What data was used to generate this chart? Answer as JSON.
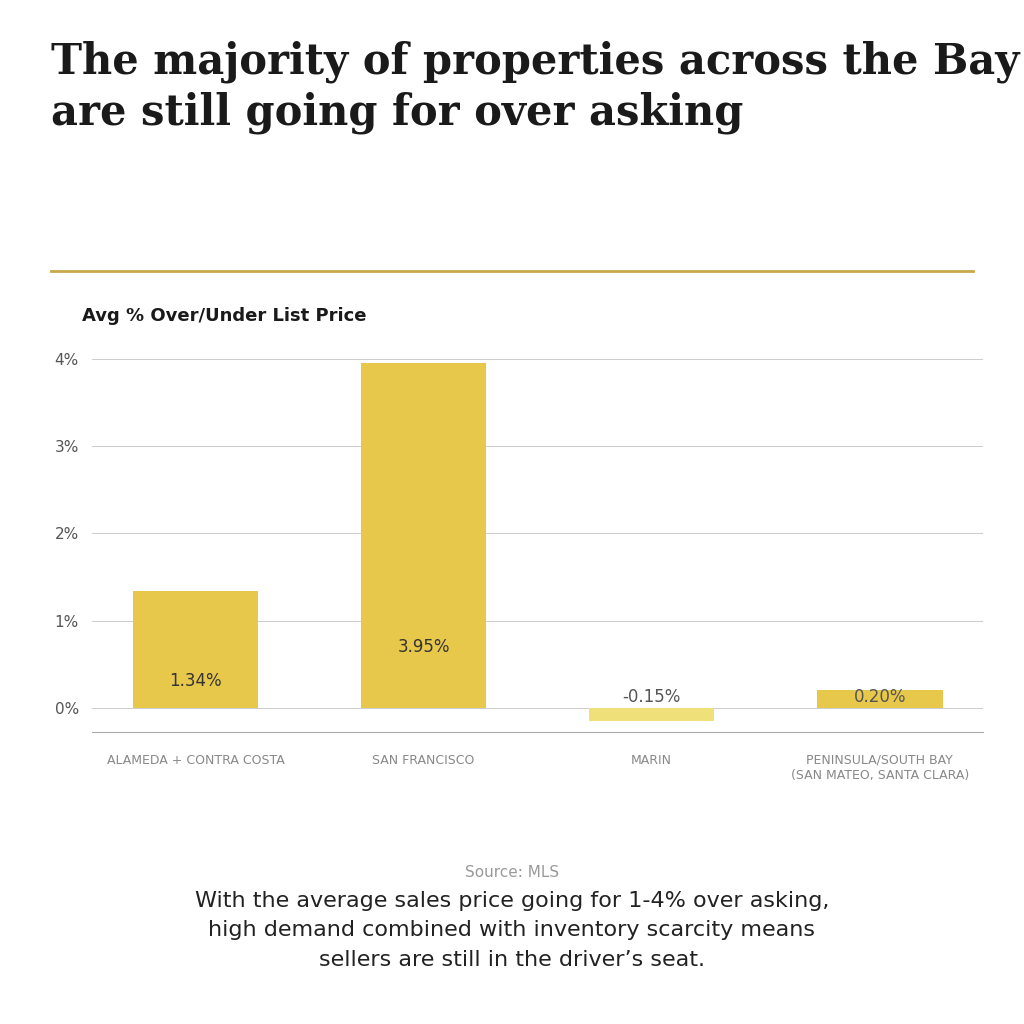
{
  "title": "The majority of properties across the Bay Area\nare still going for over asking",
  "ylabel": "Avg % Over/Under List Price",
  "categories": [
    "ALAMEDA + CONTRA COSTA",
    "SAN FRANCISCO",
    "MARIN",
    "PENINSULA/SOUTH BAY\n(SAN MATEO, SANTA CLARA)"
  ],
  "values": [
    1.34,
    3.95,
    -0.15,
    0.2
  ],
  "bar_colors": [
    "#E8C84A",
    "#E8C84A",
    "#F0E07A",
    "#E8C84A"
  ],
  "value_labels": [
    "1.34%",
    "3.95%",
    "-0.15%",
    "0.20%"
  ],
  "source": "Source: MLS",
  "footnote": "With the average sales price going for 1-4% over asking,\nhigh demand combined with inventory scarcity means\nsellers are still in the driver’s seat.",
  "ylim": [
    -0.28,
    4.3
  ],
  "yticks": [
    0,
    1,
    2,
    3,
    4
  ],
  "ytick_labels": [
    "0%",
    "1%",
    "2%",
    "3%",
    "4%"
  ],
  "background_color": "#FFFFFF",
  "separator_color": "#C8A84A",
  "grid_color": "#CCCCCC",
  "title_fontsize": 30,
  "ylabel_fontsize": 13,
  "tick_label_fontsize": 11,
  "bar_label_fontsize": 12,
  "footnote_fontsize": 16,
  "source_fontsize": 11,
  "bar_width": 0.55
}
